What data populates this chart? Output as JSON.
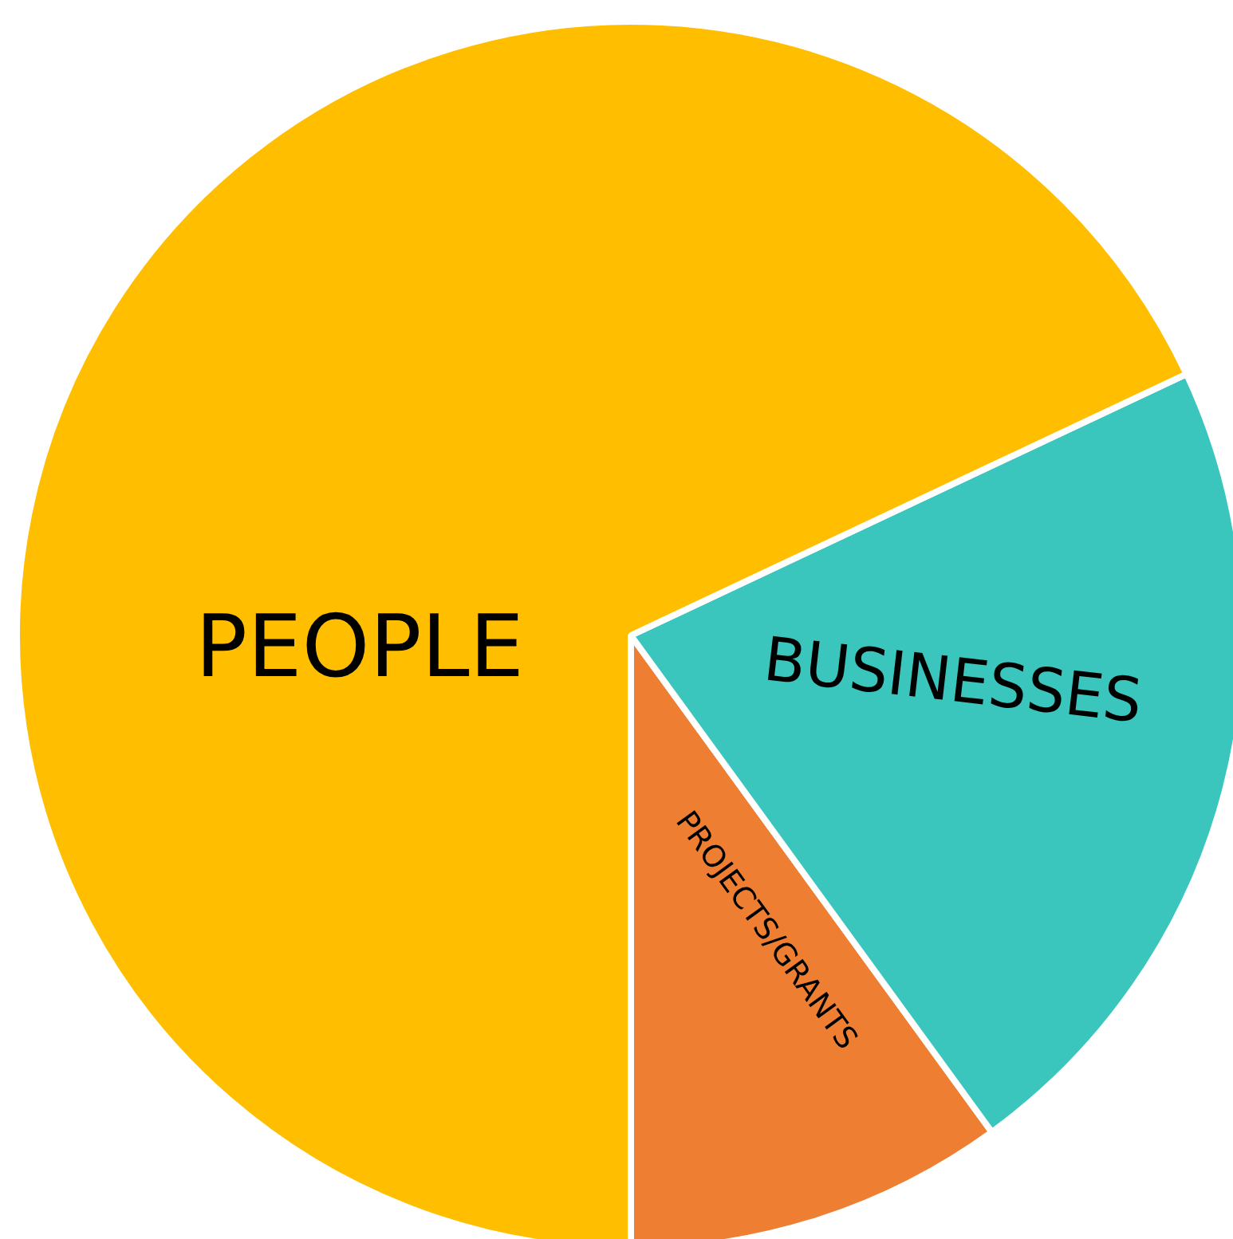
{
  "chart_data": {
    "type": "pie",
    "categories": [
      "PEOPLE",
      "BUSINESSES",
      "PROJECTS/GRANTS"
    ],
    "values": [
      68,
      22,
      10
    ],
    "colors": [
      "#ffbf00",
      "#3bc6bd",
      "#ee7f32"
    ]
  }
}
